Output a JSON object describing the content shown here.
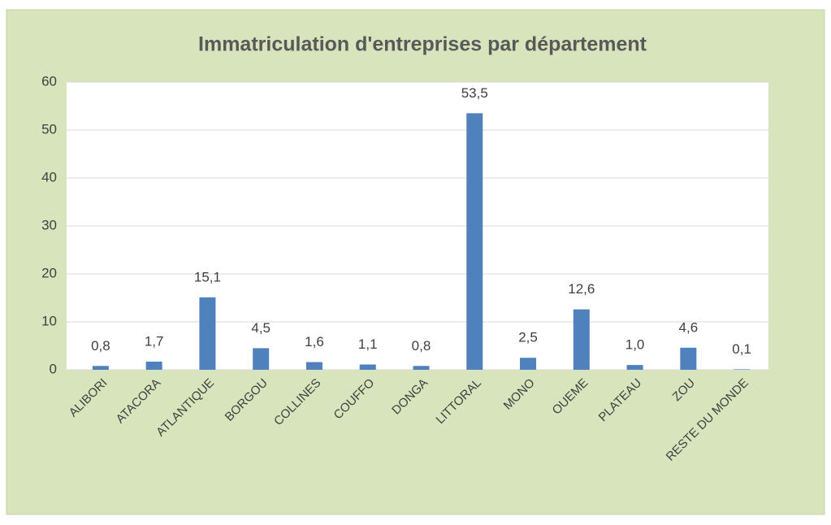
{
  "chart_data": {
    "type": "bar",
    "title": "Immatriculation d'entreprises par département",
    "categories": [
      "ALIBORI",
      "ATACORA",
      "ATLANTIQUE",
      "BORGOU",
      "COLLINES",
      "COUFFO",
      "DONGA",
      "LITTORAL",
      "MONO",
      "OUEME",
      "PLATEAU",
      "ZOU",
      "RESTE DU MONDE"
    ],
    "values": [
      0.8,
      1.7,
      15.1,
      4.5,
      1.6,
      1.1,
      0.8,
      53.5,
      2.5,
      12.6,
      1.0,
      4.6,
      0.1
    ],
    "value_labels": [
      "0,8",
      "1,7",
      "15,1",
      "4,5",
      "1,6",
      "1,1",
      "0,8",
      "53,5",
      "2,5",
      "12,6",
      "1,0",
      "4,6",
      "0,1"
    ],
    "color": "#4f81bd",
    "ylim": [
      0,
      60
    ],
    "yticks": [
      0,
      10,
      20,
      30,
      40,
      50,
      60
    ],
    "grid": true
  }
}
